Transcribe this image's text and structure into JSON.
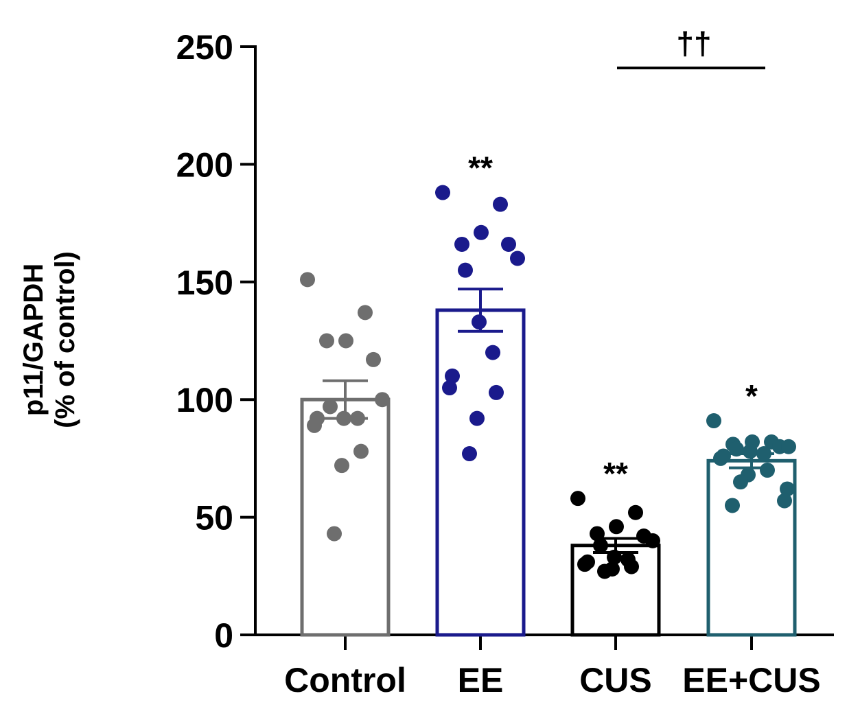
{
  "chart_data": {
    "type": "bar",
    "title": "",
    "xlabel": "",
    "ylabel_lines": [
      "p11/GAPDH",
      "(% of control)"
    ],
    "ylim": [
      0,
      250
    ],
    "yticks": [
      "0",
      "50",
      "100",
      "150",
      "200",
      "250"
    ],
    "categories": [
      "Control",
      "EE",
      "CUS",
      "EE+CUS"
    ],
    "values": [
      100,
      138,
      38,
      74
    ],
    "sem": [
      8,
      9,
      3,
      3
    ],
    "colors": [
      "#6e6e6e",
      "#1a1a8c",
      "#000000",
      "#1f5f6e"
    ],
    "significance": [
      "",
      "**",
      "**",
      "*"
    ],
    "comparison": {
      "from": "CUS",
      "to": "EE+CUS",
      "label": "††"
    },
    "points": [
      [
        151,
        137,
        125,
        125,
        117,
        100,
        97,
        92,
        92,
        92,
        89,
        78,
        72,
        43
      ],
      [
        188,
        183,
        171,
        166,
        166,
        160,
        155,
        133,
        120,
        110,
        105,
        103,
        92,
        77
      ],
      [
        58,
        52,
        46,
        43,
        42,
        40,
        38,
        33,
        32,
        31,
        30,
        29,
        28,
        27
      ],
      [
        91,
        82,
        82,
        81,
        80,
        80,
        79,
        78,
        77,
        76,
        75,
        70,
        68,
        65,
        62,
        57,
        55
      ]
    ]
  }
}
